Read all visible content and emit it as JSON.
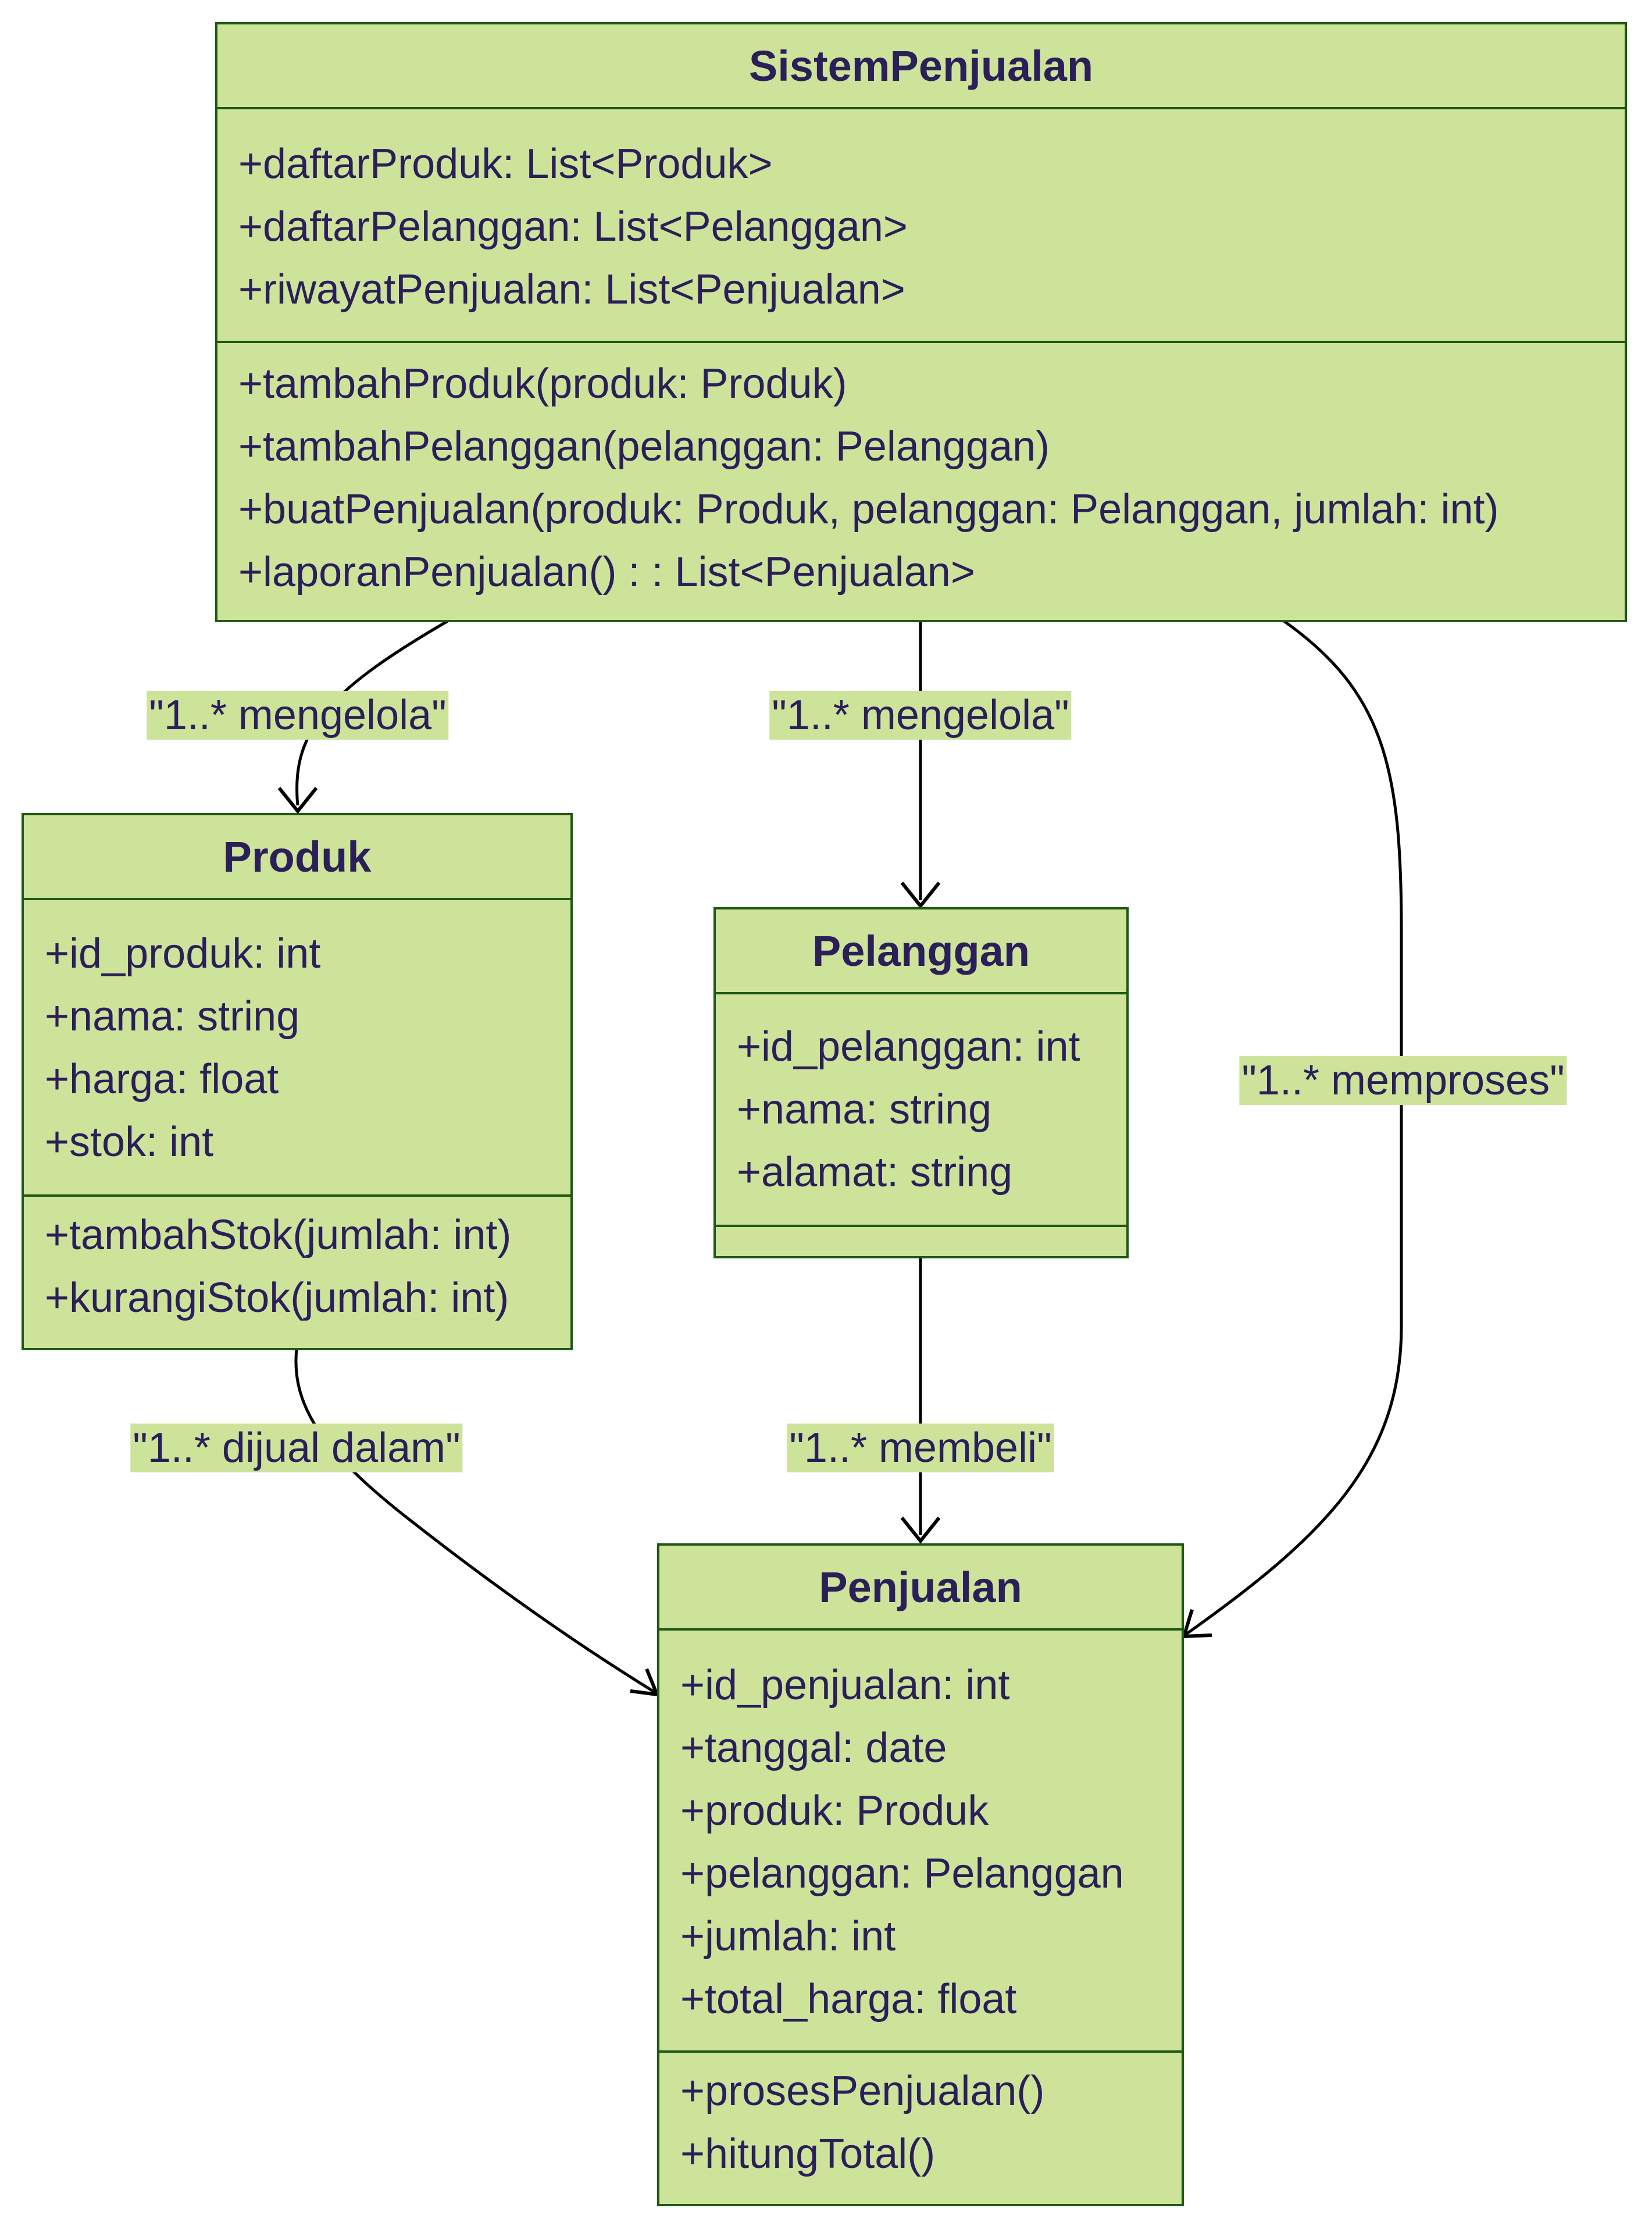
{
  "classes": {
    "sistem": {
      "name": "SistemPenjualan",
      "attributes": [
        "+daftarProduk: List<Produk>",
        "+daftarPelanggan: List<Pelanggan>",
        "+riwayatPenjualan: List<Penjualan>"
      ],
      "methods": [
        "+tambahProduk(produk: Produk)",
        "+tambahPelanggan(pelanggan: Pelanggan)",
        "+buatPenjualan(produk: Produk, pelanggan: Pelanggan, jumlah: int)",
        "+laporanPenjualan() : : List<Penjualan>"
      ]
    },
    "produk": {
      "name": "Produk",
      "attributes": [
        "+id_produk: int",
        "+nama: string",
        "+harga: float",
        "+stok: int"
      ],
      "methods": [
        "+tambahStok(jumlah: int)",
        "+kurangiStok(jumlah: int)"
      ]
    },
    "pelanggan": {
      "name": "Pelanggan",
      "attributes": [
        "+id_pelanggan: int",
        "+nama: string",
        "+alamat: string"
      ],
      "methods": []
    },
    "penjualan": {
      "name": "Penjualan",
      "attributes": [
        "+id_penjualan: int",
        "+tanggal: date",
        "+produk: Produk",
        "+pelanggan: Pelanggan",
        "+jumlah: int",
        "+total_harga: float"
      ],
      "methods": [
        "+prosesPenjualan()",
        "+hitungTotal()"
      ]
    }
  },
  "relations": {
    "sistem_produk": "\"1..* mengelola\"",
    "sistem_pelanggan": "\"1..* mengelola\"",
    "sistem_penjualan": "\"1..* memproses\"",
    "produk_penjualan": "\"1..* dijual dalam\"",
    "pelanggan_penjualan": "\"1..* membeli\""
  },
  "colors": {
    "class_fill": "#cde39a",
    "class_border": "#1f5a14",
    "text": "#2b1f5a",
    "edge": "#000000"
  }
}
